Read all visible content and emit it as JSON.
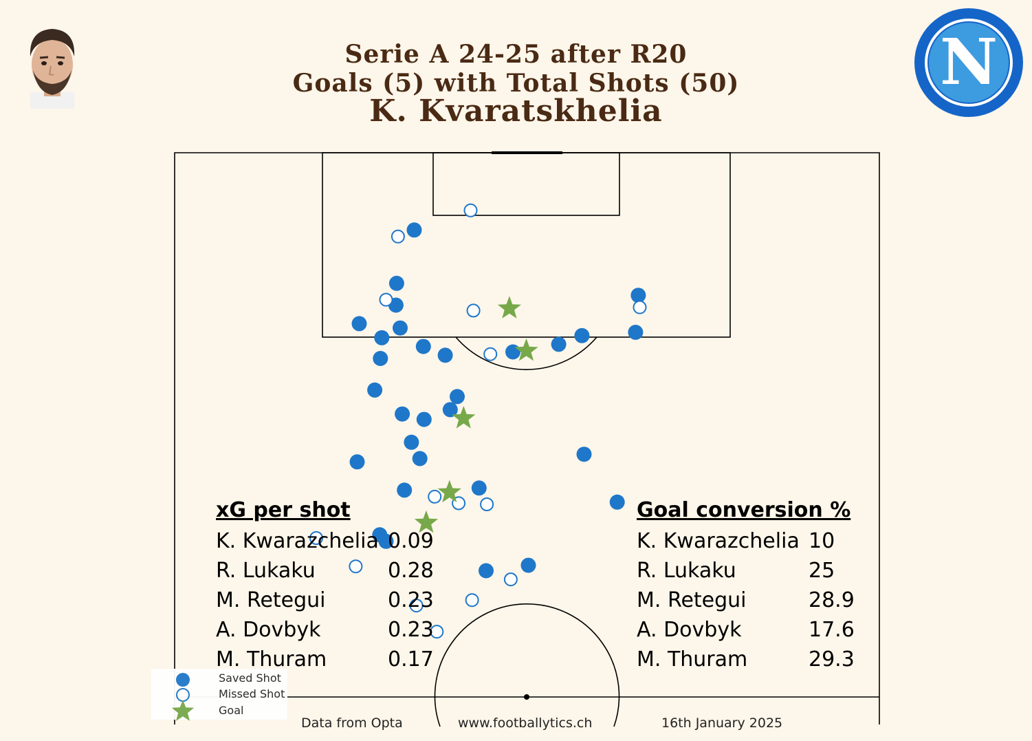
{
  "header": {
    "line1": "Serie A 24-25 after R20",
    "line2": "Goals (5) with Total Shots (50)",
    "player": "K. Kvaratskhelia"
  },
  "images": {
    "player_photo": "player-portrait",
    "club_logo": "napoli-logo",
    "club_logo_letter": "N"
  },
  "colors": {
    "background": "#fdf6ea",
    "saved": "#1f77c9",
    "missed": "#1f77c9",
    "goal": "#77a84a",
    "title": "#4a2a14"
  },
  "stats": {
    "xg": {
      "heading": "xG per shot",
      "rows": [
        {
          "name": "K. Kwarazchelia",
          "value": "0.09"
        },
        {
          "name": "R. Lukaku",
          "value": "0.28"
        },
        {
          "name": "M. Retegui",
          "value": "0.23"
        },
        {
          "name": "A.   Dovbyk",
          "value": "0.23"
        },
        {
          "name": "M. Thuram",
          "value": "0.17"
        }
      ]
    },
    "conversion": {
      "heading": "Goal conversion %",
      "rows": [
        {
          "name": "K. Kwarazchelia",
          "value": "10"
        },
        {
          "name": "R. Lukaku",
          "value": "25"
        },
        {
          "name": "M. Retegui",
          "value": "28.9"
        },
        {
          "name": "A.   Dovbyk",
          "value": "17.6"
        },
        {
          "name": "M. Thuram",
          "value": "29.3"
        }
      ]
    }
  },
  "legend": {
    "saved": "Saved Shot",
    "missed": "Missed Shot",
    "goal": "Goal"
  },
  "footer": {
    "source": "Data from Opta",
    "site": "www.footballytics.ch",
    "date": "16th January 2025"
  },
  "chart_data": {
    "type": "scatter",
    "pitch": "half-pitch, vertical, goal at top",
    "x_range": [
      0,
      100
    ],
    "y_range": [
      50,
      100
    ],
    "series": [
      {
        "name": "Saved Shot",
        "marker": "filled-circle",
        "points": [
          [
            34.0,
            92.9
          ],
          [
            31.5,
            88.0
          ],
          [
            31.4,
            86.0
          ],
          [
            26.2,
            84.3
          ],
          [
            29.4,
            83.0
          ],
          [
            32.0,
            83.9
          ],
          [
            35.3,
            82.2
          ],
          [
            38.4,
            81.4
          ],
          [
            29.2,
            81.1
          ],
          [
            28.4,
            78.2
          ],
          [
            40.1,
            77.6
          ],
          [
            39.1,
            76.4
          ],
          [
            32.3,
            76.0
          ],
          [
            35.4,
            75.5
          ],
          [
            33.6,
            73.4
          ],
          [
            34.8,
            71.9
          ],
          [
            25.9,
            71.6
          ],
          [
            32.6,
            69.0
          ],
          [
            43.2,
            69.2
          ],
          [
            48.0,
            81.7
          ],
          [
            54.5,
            82.4
          ],
          [
            57.8,
            83.2
          ],
          [
            65.8,
            86.9
          ],
          [
            65.4,
            83.5
          ],
          [
            58.1,
            72.3
          ],
          [
            62.8,
            67.9
          ],
          [
            29.1,
            64.9
          ],
          [
            30.0,
            64.3
          ],
          [
            44.2,
            61.6
          ],
          [
            50.2,
            62.1
          ]
        ]
      },
      {
        "name": "Missed Shot",
        "marker": "hollow-circle",
        "points": [
          [
            42.0,
            94.7
          ],
          [
            31.7,
            92.3
          ],
          [
            30.0,
            86.5
          ],
          [
            42.4,
            85.5
          ],
          [
            44.8,
            81.5
          ],
          [
            66.0,
            85.8
          ],
          [
            36.9,
            68.4
          ],
          [
            40.3,
            67.8
          ],
          [
            44.3,
            67.7
          ],
          [
            20.1,
            64.6
          ],
          [
            25.7,
            62.0
          ],
          [
            47.7,
            60.8
          ],
          [
            34.3,
            58.4
          ],
          [
            42.2,
            58.9
          ],
          [
            37.2,
            56.0
          ]
        ]
      },
      {
        "name": "Goal",
        "marker": "star",
        "points": [
          [
            47.5,
            85.7
          ],
          [
            49.9,
            81.8
          ],
          [
            41.0,
            75.6
          ],
          [
            39.0,
            68.8
          ],
          [
            35.7,
            66.0
          ]
        ]
      }
    ]
  }
}
